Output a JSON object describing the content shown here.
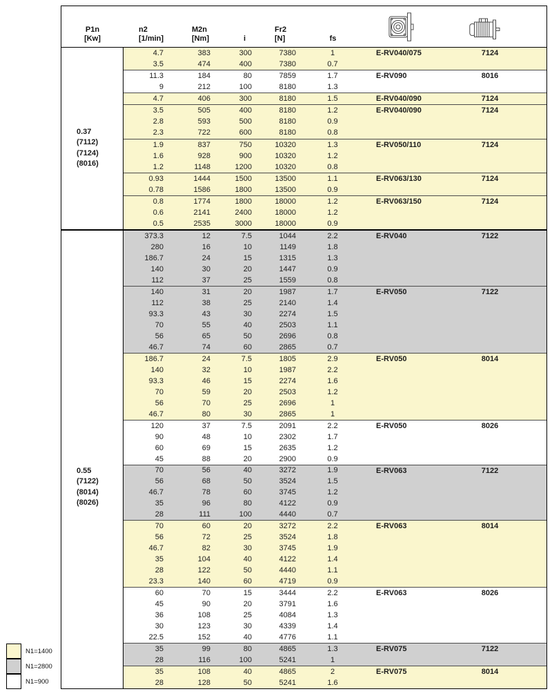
{
  "header": {
    "columns": [
      {
        "line1": "P1n",
        "line2": "[Kw]"
      },
      {
        "line1": "n2",
        "line2": "[1/min]"
      },
      {
        "line1": "M2n",
        "line2": "[Nm]"
      },
      {
        "line1": "",
        "line2": "i"
      },
      {
        "line1": "Fr2",
        "line2": "[N]"
      },
      {
        "line1": "",
        "line2": "fs"
      }
    ],
    "icons": [
      "worm-gearbox",
      "electric-motor"
    ]
  },
  "colors": {
    "yellow": "#FAF6CD",
    "gray": "#D0D0D0",
    "white": "#FFFFFF"
  },
  "legend": [
    {
      "label": "N1=1400",
      "color": "#FAF6CD"
    },
    {
      "label": "N1=2800",
      "color": "#D0D0D0"
    },
    {
      "label": "N1=900",
      "color": "#FFFFFF"
    }
  ],
  "sections": [
    {
      "p1n": [
        "0.37",
        "(7112)",
        "(7124)",
        "(8016)"
      ],
      "groups": [
        {
          "bg": "yellow",
          "model": "E-RV040/075",
          "motor": "7124",
          "rows": [
            [
              "4.7",
              "383",
              "300",
              "7380",
              "1"
            ],
            [
              "3.5",
              "474",
              "400",
              "7380",
              "0.7"
            ]
          ]
        },
        {
          "bg": "white",
          "model": "E-RV090",
          "motor": "8016",
          "rows": [
            [
              "11.3",
              "184",
              "80",
              "7859",
              "1.7"
            ],
            [
              "9",
              "212",
              "100",
              "8180",
              "1.3"
            ]
          ]
        },
        {
          "bg": "yellow",
          "model": "E-RV040/090",
          "motor": "7124",
          "rows": [
            [
              "4.7",
              "406",
              "300",
              "8180",
              "1.5"
            ]
          ]
        },
        {
          "bg": "yellow",
          "model": "E-RV040/090",
          "motor": "7124",
          "rows": [
            [
              "3.5",
              "505",
              "400",
              "8180",
              "1.2"
            ],
            [
              "2.8",
              "593",
              "500",
              "8180",
              "0.9"
            ],
            [
              "2.3",
              "722",
              "600",
              "8180",
              "0.8"
            ]
          ]
        },
        {
          "bg": "yellow",
          "model": "E-RV050/110",
          "motor": "7124",
          "rows": [
            [
              "1.9",
              "837",
              "750",
              "10320",
              "1.3"
            ],
            [
              "1.6",
              "928",
              "900",
              "10320",
              "1.2"
            ],
            [
              "1.2",
              "1148",
              "1200",
              "10320",
              "0.8"
            ]
          ]
        },
        {
          "bg": "yellow",
          "model": "E-RV063/130",
          "motor": "7124",
          "rows": [
            [
              "0.93",
              "1444",
              "1500",
              "13500",
              "1.1"
            ],
            [
              "0.78",
              "1586",
              "1800",
              "13500",
              "0.9"
            ]
          ]
        },
        {
          "bg": "yellow",
          "model": "E-RV063/150",
          "motor": "7124",
          "rows": [
            [
              "0.8",
              "1774",
              "1800",
              "18000",
              "1.2"
            ],
            [
              "0.6",
              "2141",
              "2400",
              "18000",
              "1.2"
            ],
            [
              "0.5",
              "2535",
              "3000",
              "18000",
              "0.9"
            ]
          ]
        }
      ]
    },
    {
      "p1n": [
        "0.55",
        "(7122)",
        "(8014)",
        "(8026)"
      ],
      "groups": [
        {
          "bg": "gray",
          "model": "E-RV040",
          "motor": "7122",
          "rows": [
            [
              "373.3",
              "12",
              "7.5",
              "1044",
              "2.2"
            ],
            [
              "280",
              "16",
              "10",
              "1149",
              "1.8"
            ],
            [
              "186.7",
              "24",
              "15",
              "1315",
              "1.3"
            ],
            [
              "140",
              "30",
              "20",
              "1447",
              "0.9"
            ],
            [
              "112",
              "37",
              "25",
              "1559",
              "0.8"
            ]
          ]
        },
        {
          "bg": "gray",
          "model": "E-RV050",
          "motor": "7122",
          "rows": [
            [
              "140",
              "31",
              "20",
              "1987",
              "1.7"
            ],
            [
              "112",
              "38",
              "25",
              "2140",
              "1.4"
            ],
            [
              "93.3",
              "43",
              "30",
              "2274",
              "1.5"
            ],
            [
              "70",
              "55",
              "40",
              "2503",
              "1.1"
            ],
            [
              "56",
              "65",
              "50",
              "2696",
              "0.8"
            ],
            [
              "46.7",
              "74",
              "60",
              "2865",
              "0.7"
            ]
          ]
        },
        {
          "bg": "yellow",
          "model": "E-RV050",
          "motor": "8014",
          "rows": [
            [
              "186.7",
              "24",
              "7.5",
              "1805",
              "2.9"
            ],
            [
              "140",
              "32",
              "10",
              "1987",
              "2.2"
            ],
            [
              "93.3",
              "46",
              "15",
              "2274",
              "1.6"
            ],
            [
              "70",
              "59",
              "20",
              "2503",
              "1.2"
            ],
            [
              "56",
              "70",
              "25",
              "2696",
              "1"
            ],
            [
              "46.7",
              "80",
              "30",
              "2865",
              "1"
            ]
          ]
        },
        {
          "bg": "white",
          "model": "E-RV050",
          "motor": "8026",
          "rows": [
            [
              "120",
              "37",
              "7.5",
              "2091",
              "2.2"
            ],
            [
              "90",
              "48",
              "10",
              "2302",
              "1.7"
            ],
            [
              "60",
              "69",
              "15",
              "2635",
              "1.2"
            ],
            [
              "45",
              "88",
              "20",
              "2900",
              "0.9"
            ]
          ]
        },
        {
          "bg": "gray",
          "model": "E-RV063",
          "motor": "7122",
          "rows": [
            [
              "70",
              "56",
              "40",
              "3272",
              "1.9"
            ],
            [
              "56",
              "68",
              "50",
              "3524",
              "1.5"
            ],
            [
              "46.7",
              "78",
              "60",
              "3745",
              "1.2"
            ],
            [
              "35",
              "96",
              "80",
              "4122",
              "0.9"
            ],
            [
              "28",
              "111",
              "100",
              "4440",
              "0.7"
            ]
          ]
        },
        {
          "bg": "yellow",
          "model": "E-RV063",
          "motor": "8014",
          "rows": [
            [
              "70",
              "60",
              "20",
              "3272",
              "2.2"
            ],
            [
              "56",
              "72",
              "25",
              "3524",
              "1.8"
            ],
            [
              "46.7",
              "82",
              "30",
              "3745",
              "1.9"
            ],
            [
              "35",
              "104",
              "40",
              "4122",
              "1.4"
            ],
            [
              "28",
              "122",
              "50",
              "4440",
              "1.1"
            ],
            [
              "23.3",
              "140",
              "60",
              "4719",
              "0.9"
            ]
          ]
        },
        {
          "bg": "white",
          "model": "E-RV063",
          "motor": "8026",
          "rows": [
            [
              "60",
              "70",
              "15",
              "3444",
              "2.2"
            ],
            [
              "45",
              "90",
              "20",
              "3791",
              "1.6"
            ],
            [
              "36",
              "108",
              "25",
              "4084",
              "1.3"
            ],
            [
              "30",
              "123",
              "30",
              "4339",
              "1.4"
            ],
            [
              "22.5",
              "152",
              "40",
              "4776",
              "1.1"
            ]
          ]
        },
        {
          "bg": "gray",
          "model": "E-RV075",
          "motor": "7122",
          "rows": [
            [
              "35",
              "99",
              "80",
              "4865",
              "1.3"
            ],
            [
              "28",
              "116",
              "100",
              "5241",
              "1"
            ]
          ]
        },
        {
          "bg": "yellow",
          "model": "E-RV075",
          "motor": "8014",
          "rows": [
            [
              "35",
              "108",
              "40",
              "4865",
              "2"
            ],
            [
              "28",
              "128",
              "50",
              "5241",
              "1.6"
            ]
          ]
        }
      ]
    }
  ]
}
